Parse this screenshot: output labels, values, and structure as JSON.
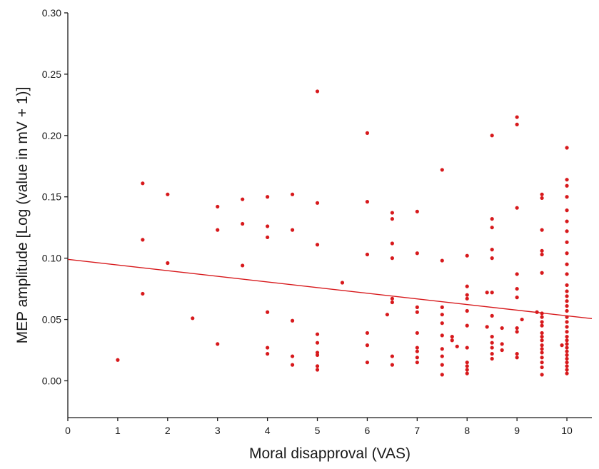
{
  "chart_data": {
    "type": "scatter",
    "title": "",
    "xlabel": "Moral disapproval (VAS)",
    "ylabel": "MEP amplitude [Log (value in mV + 1)]",
    "xlim": [
      0,
      10.5
    ],
    "ylim": [
      -0.03,
      0.3
    ],
    "x_ticks": [
      0,
      1,
      2,
      3,
      4,
      5,
      6,
      7,
      8,
      9,
      10
    ],
    "x_tick_labels": [
      "0",
      "1",
      "2",
      "3",
      "4",
      "5",
      "6",
      "7",
      "8",
      "9",
      "10"
    ],
    "y_ticks": [
      0.0,
      0.05,
      0.1,
      0.15,
      0.2,
      0.25,
      0.3
    ],
    "y_tick_labels": [
      "0.00",
      "0.05",
      "0.10",
      "0.15",
      "0.20",
      "0.25",
      "0.30"
    ],
    "grid": false,
    "legend": "none",
    "point_color": "#d7191c",
    "line_color": "#d7191c",
    "fit_line": {
      "intercept": 0.099,
      "slope": -0.0046
    },
    "points": [
      [
        1.0,
        0.017
      ],
      [
        1.5,
        0.161
      ],
      [
        1.5,
        0.115
      ],
      [
        1.5,
        0.071
      ],
      [
        2.0,
        0.152
      ],
      [
        2.0,
        0.096
      ],
      [
        2.5,
        0.051
      ],
      [
        3.0,
        0.142
      ],
      [
        3.0,
        0.123
      ],
      [
        3.0,
        0.03
      ],
      [
        3.5,
        0.148
      ],
      [
        3.5,
        0.128
      ],
      [
        3.5,
        0.094
      ],
      [
        4.0,
        0.15
      ],
      [
        4.0,
        0.126
      ],
      [
        4.0,
        0.117
      ],
      [
        4.0,
        0.056
      ],
      [
        4.0,
        0.027
      ],
      [
        4.0,
        0.022
      ],
      [
        4.5,
        0.152
      ],
      [
        4.5,
        0.123
      ],
      [
        4.5,
        0.049
      ],
      [
        4.5,
        0.02
      ],
      [
        4.5,
        0.013
      ],
      [
        5.0,
        0.236
      ],
      [
        5.0,
        0.145
      ],
      [
        5.0,
        0.111
      ],
      [
        5.0,
        0.038
      ],
      [
        5.0,
        0.031
      ],
      [
        5.0,
        0.023
      ],
      [
        5.0,
        0.021
      ],
      [
        5.0,
        0.012
      ],
      [
        5.0,
        0.009
      ],
      [
        5.5,
        0.08
      ],
      [
        6.0,
        0.202
      ],
      [
        6.0,
        0.146
      ],
      [
        6.0,
        0.103
      ],
      [
        6.0,
        0.039
      ],
      [
        6.0,
        0.029
      ],
      [
        6.0,
        0.015
      ],
      [
        6.4,
        0.054
      ],
      [
        6.5,
        0.137
      ],
      [
        6.5,
        0.132
      ],
      [
        6.5,
        0.112
      ],
      [
        6.5,
        0.1
      ],
      [
        6.5,
        0.067
      ],
      [
        6.5,
        0.064
      ],
      [
        6.5,
        0.02
      ],
      [
        6.5,
        0.013
      ],
      [
        7.0,
        0.138
      ],
      [
        7.0,
        0.104
      ],
      [
        7.0,
        0.06
      ],
      [
        7.0,
        0.056
      ],
      [
        7.0,
        0.039
      ],
      [
        7.0,
        0.027
      ],
      [
        7.0,
        0.024
      ],
      [
        7.0,
        0.019
      ],
      [
        7.0,
        0.015
      ],
      [
        7.5,
        0.172
      ],
      [
        7.5,
        0.098
      ],
      [
        7.5,
        0.06
      ],
      [
        7.5,
        0.054
      ],
      [
        7.5,
        0.047
      ],
      [
        7.5,
        0.037
      ],
      [
        7.5,
        0.026
      ],
      [
        7.5,
        0.02
      ],
      [
        7.5,
        0.013
      ],
      [
        7.5,
        0.005
      ],
      [
        7.7,
        0.036
      ],
      [
        7.7,
        0.033
      ],
      [
        7.8,
        0.028
      ],
      [
        8.0,
        0.102
      ],
      [
        8.0,
        0.077
      ],
      [
        8.0,
        0.07
      ],
      [
        8.0,
        0.067
      ],
      [
        8.0,
        0.057
      ],
      [
        8.0,
        0.045
      ],
      [
        8.0,
        0.027
      ],
      [
        8.0,
        0.015
      ],
      [
        8.0,
        0.012
      ],
      [
        8.0,
        0.009
      ],
      [
        8.0,
        0.006
      ],
      [
        8.4,
        0.072
      ],
      [
        8.4,
        0.044
      ],
      [
        8.5,
        0.2
      ],
      [
        8.5,
        0.132
      ],
      [
        8.5,
        0.125
      ],
      [
        8.5,
        0.107
      ],
      [
        8.5,
        0.1
      ],
      [
        8.5,
        0.072
      ],
      [
        8.5,
        0.053
      ],
      [
        8.5,
        0.036
      ],
      [
        8.5,
        0.031
      ],
      [
        8.5,
        0.027
      ],
      [
        8.5,
        0.022
      ],
      [
        8.5,
        0.018
      ],
      [
        8.7,
        0.043
      ],
      [
        8.7,
        0.03
      ],
      [
        8.7,
        0.025
      ],
      [
        9.0,
        0.215
      ],
      [
        9.0,
        0.209
      ],
      [
        9.0,
        0.141
      ],
      [
        9.0,
        0.087
      ],
      [
        9.0,
        0.075
      ],
      [
        9.0,
        0.068
      ],
      [
        9.0,
        0.043
      ],
      [
        9.0,
        0.04
      ],
      [
        9.0,
        0.022
      ],
      [
        9.0,
        0.019
      ],
      [
        9.1,
        0.05
      ],
      [
        9.4,
        0.056
      ],
      [
        9.5,
        0.152
      ],
      [
        9.5,
        0.149
      ],
      [
        9.5,
        0.123
      ],
      [
        9.5,
        0.106
      ],
      [
        9.5,
        0.103
      ],
      [
        9.5,
        0.088
      ],
      [
        9.5,
        0.055
      ],
      [
        9.5,
        0.052
      ],
      [
        9.5,
        0.048
      ],
      [
        9.5,
        0.045
      ],
      [
        9.5,
        0.039
      ],
      [
        9.5,
        0.036
      ],
      [
        9.5,
        0.033
      ],
      [
        9.5,
        0.029
      ],
      [
        9.5,
        0.026
      ],
      [
        9.5,
        0.023
      ],
      [
        9.5,
        0.019
      ],
      [
        9.5,
        0.015
      ],
      [
        9.5,
        0.011
      ],
      [
        9.5,
        0.005
      ],
      [
        9.9,
        0.029
      ],
      [
        10.0,
        0.19
      ],
      [
        10.0,
        0.164
      ],
      [
        10.0,
        0.159
      ],
      [
        10.0,
        0.15
      ],
      [
        10.0,
        0.139
      ],
      [
        10.0,
        0.13
      ],
      [
        10.0,
        0.122
      ],
      [
        10.0,
        0.113
      ],
      [
        10.0,
        0.104
      ],
      [
        10.0,
        0.095
      ],
      [
        10.0,
        0.087
      ],
      [
        10.0,
        0.078
      ],
      [
        10.0,
        0.073
      ],
      [
        10.0,
        0.069
      ],
      [
        10.0,
        0.065
      ],
      [
        10.0,
        0.061
      ],
      [
        10.0,
        0.057
      ],
      [
        10.0,
        0.052
      ],
      [
        10.0,
        0.048
      ],
      [
        10.0,
        0.044
      ],
      [
        10.0,
        0.04
      ],
      [
        10.0,
        0.036
      ],
      [
        10.0,
        0.033
      ],
      [
        10.0,
        0.03
      ],
      [
        10.0,
        0.027
      ],
      [
        10.0,
        0.024
      ],
      [
        10.0,
        0.021
      ],
      [
        10.0,
        0.018
      ],
      [
        10.0,
        0.015
      ],
      [
        10.0,
        0.012
      ],
      [
        10.0,
        0.009
      ],
      [
        10.0,
        0.006
      ]
    ]
  }
}
